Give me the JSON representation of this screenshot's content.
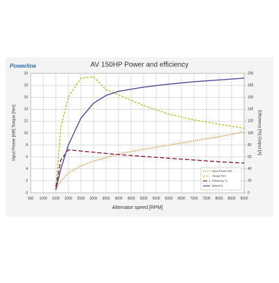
{
  "logo": "Powerline",
  "chart_data": {
    "type": "line",
    "title": "AV 150HP Power and efficiency",
    "x_label": "Alternator speed [RPM]",
    "y_label": "Input Power [kW] Torque [Nm]",
    "y2_label": "Efficiency [%] Output [A]",
    "x": [
      1500,
      1700,
      2000,
      2500,
      3000,
      3500,
      4000,
      5000,
      6000,
      7000,
      8000,
      9000
    ],
    "xlim": [
      500,
      9000
    ],
    "xticks": [
      500,
      1000,
      1500,
      2000,
      2500,
      3000,
      3500,
      4000,
      4500,
      5000,
      5500,
      6000,
      6500,
      7000,
      7500,
      8000,
      8500,
      9000
    ],
    "ylim": [
      0,
      20
    ],
    "yticks": [
      0,
      2,
      4,
      6,
      8,
      10,
      12,
      14,
      16,
      18,
      20
    ],
    "y2lim": [
      0,
      200
    ],
    "y2ticks": [
      0,
      20,
      40,
      60,
      80,
      100,
      120,
      140,
      160,
      180,
      200
    ],
    "grid": true,
    "legend": "lower right",
    "series": [
      {
        "name": "Input Power kW",
        "color": "#e8902a",
        "style": "dotted",
        "values": [
          0.5,
          2.0,
          3.3,
          4.5,
          5.3,
          5.9,
          6.5,
          7.3,
          8.0,
          8.7,
          9.4,
          10.2
        ]
      },
      {
        "name": "Torque Nm",
        "color": "#b5c42a",
        "style": "dashed",
        "values": [
          0.5,
          11,
          16,
          19.2,
          19.4,
          17.3,
          16.4,
          14.6,
          13.2,
          12.2,
          11.5,
          10.8
        ]
      },
      {
        "name": "Efficiency %",
        "color": "#8b1d3a",
        "style": "longdash",
        "axis": "y2",
        "values": [
          10,
          55,
          72,
          70,
          68,
          66,
          64,
          61,
          58,
          55,
          52,
          50
        ]
      },
      {
        "name": "Output A",
        "color": "#4b4a9a",
        "style": "solid",
        "axis": "y2",
        "values": [
          5,
          40,
          80,
          125,
          150,
          163,
          170,
          177,
          182,
          186,
          189,
          192
        ]
      }
    ]
  }
}
